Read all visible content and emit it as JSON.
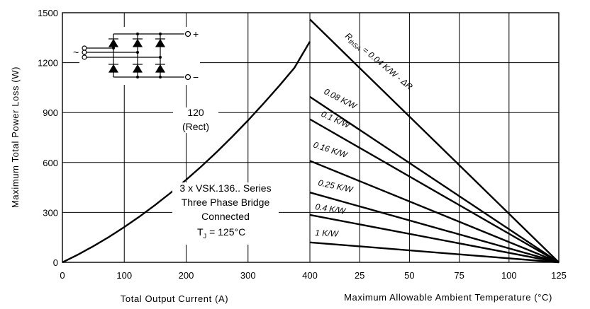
{
  "chart_data": {
    "type": "line",
    "ylabel": "Maximum Total Power Loss (W)",
    "ylim": [
      0,
      1500
    ],
    "y_ticks": [
      "0",
      "300",
      "600",
      "900",
      "1200",
      "1500"
    ],
    "grid": true,
    "left_panel": {
      "xlabel": "Total Output Current (A)",
      "xlim": [
        0,
        400
      ],
      "x_ticks": [
        "0",
        "100",
        "200",
        "300",
        "400"
      ],
      "series": [
        {
          "name": "120 (Rect)",
          "x": [
            0,
            25,
            50,
            75,
            100,
            125,
            150,
            175,
            200,
            225,
            250,
            275,
            300,
            325,
            350,
            375,
            400
          ],
          "y": [
            0,
            46,
            97,
            152,
            212,
            276,
            345,
            418,
            496,
            578,
            665,
            757,
            853,
            954,
            1059,
            1169,
            1327
          ]
        }
      ]
    },
    "right_panel": {
      "xlabel": "Maximum Allowable Ambient Temperature (°C)",
      "xlim": [
        0,
        125
      ],
      "x_ticks": [
        "25",
        "50",
        "75",
        "100",
        "125"
      ],
      "series": [
        {
          "name": "RthSA = 0.04 K/W - ΔR",
          "x": [
            0,
            125
          ],
          "y": [
            1460,
            0
          ]
        },
        {
          "name": "0.08 K/W",
          "x": [
            0,
            125
          ],
          "y": [
            995,
            0
          ]
        },
        {
          "name": "0.1 K/W",
          "x": [
            0,
            125
          ],
          "y": [
            860,
            0
          ]
        },
        {
          "name": "0.16 K/W",
          "x": [
            0,
            125
          ],
          "y": [
            610,
            0
          ]
        },
        {
          "name": "0.25 K/W",
          "x": [
            0,
            125
          ],
          "y": [
            420,
            0
          ]
        },
        {
          "name": "0.4 K/W",
          "x": [
            0,
            125
          ],
          "y": [
            285,
            0
          ]
        },
        {
          "name": "1 K/W",
          "x": [
            0,
            125
          ],
          "y": [
            120,
            0
          ]
        }
      ]
    },
    "annotations": {
      "curve_label_line1": "120",
      "curve_label_line2": "(Rect)",
      "device_line1": "3 x VSK.136.. Series",
      "device_line2": "Three Phase Bridge",
      "device_line3": "Connected",
      "device_tj_value": "= 125°C"
    },
    "resistance_labels": {
      "r0_prefix": "R",
      "r0_subscript": "thSA",
      "r0_value": " = 0.04 K/W - ΔR",
      "r1": "0.08 K/W",
      "r2": "0.1 K/W",
      "r3": "0.16 K/W",
      "r4": "0.25 K/W",
      "r5": "0.4 K/W",
      "r6": "1 K/W"
    },
    "schematic": {
      "plus": "+",
      "minus": "−",
      "ac": "~"
    }
  }
}
